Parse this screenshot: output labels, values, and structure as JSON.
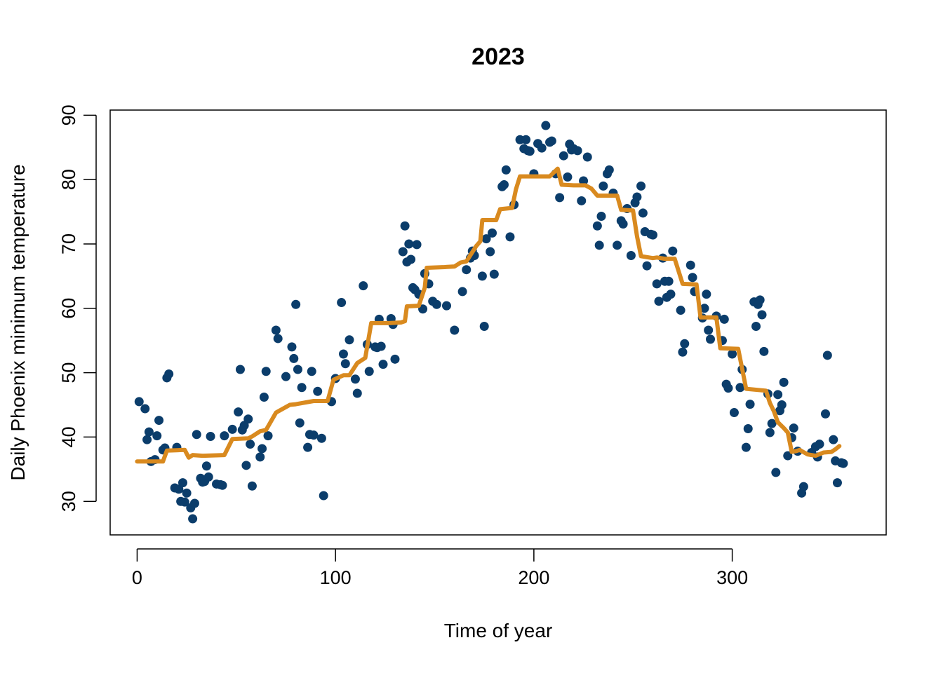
{
  "chart_data": {
    "type": "scatter",
    "title": "2023",
    "xlabel": "Time of year",
    "ylabel": "Daily Phoenix minimum temperature",
    "xlim": [
      -13.6,
      377.6
    ],
    "ylim": [
      24.8,
      90.8
    ],
    "x_ticks": [
      0,
      100,
      200,
      300
    ],
    "y_ticks": [
      30,
      40,
      50,
      60,
      70,
      80,
      90
    ],
    "grid": false,
    "colors": {
      "points": "#0b3d6b",
      "line": "#d98a1f"
    },
    "points": [
      [
        1,
        45.5
      ],
      [
        4,
        44.4
      ],
      [
        5,
        39.6
      ],
      [
        6,
        40.8
      ],
      [
        7,
        36.2
      ],
      [
        9,
        36.5
      ],
      [
        10,
        40.2
      ],
      [
        11,
        42.6
      ],
      [
        13,
        38.0
      ],
      [
        14,
        38.3
      ],
      [
        15,
        49.2
      ],
      [
        16,
        49.8
      ],
      [
        19,
        32.1
      ],
      [
        20,
        38.4
      ],
      [
        21,
        31.9
      ],
      [
        22,
        30.0
      ],
      [
        23,
        32.9
      ],
      [
        24,
        29.9
      ],
      [
        25,
        31.3
      ],
      [
        27,
        29.0
      ],
      [
        28,
        27.3
      ],
      [
        29,
        29.7
      ],
      [
        30,
        40.4
      ],
      [
        32,
        33.6
      ],
      [
        33,
        33.0
      ],
      [
        34,
        33.1
      ],
      [
        35,
        35.5
      ],
      [
        36,
        33.8
      ],
      [
        37,
        40.1
      ],
      [
        40,
        32.7
      ],
      [
        42,
        32.6
      ],
      [
        43,
        32.5
      ],
      [
        44,
        40.2
      ],
      [
        48,
        41.2
      ],
      [
        51,
        43.9
      ],
      [
        52,
        50.5
      ],
      [
        53,
        41.1
      ],
      [
        54,
        41.8
      ],
      [
        55,
        35.6
      ],
      [
        56,
        42.8
      ],
      [
        57,
        38.9
      ],
      [
        58,
        32.4
      ],
      [
        62,
        36.9
      ],
      [
        63,
        38.2
      ],
      [
        64,
        46.2
      ],
      [
        65,
        50.2
      ],
      [
        66,
        40.2
      ],
      [
        70,
        56.6
      ],
      [
        71,
        55.3
      ],
      [
        75,
        49.4
      ],
      [
        78,
        54.0
      ],
      [
        79,
        52.2
      ],
      [
        80,
        60.6
      ],
      [
        81,
        50.5
      ],
      [
        82,
        42.2
      ],
      [
        83,
        47.7
      ],
      [
        86,
        38.4
      ],
      [
        87,
        40.4
      ],
      [
        88,
        50.2
      ],
      [
        89,
        40.3
      ],
      [
        91,
        47.1
      ],
      [
        93,
        39.8
      ],
      [
        94,
        30.9
      ],
      [
        98,
        45.5
      ],
      [
        100,
        49.1
      ],
      [
        103,
        60.9
      ],
      [
        104,
        52.9
      ],
      [
        105,
        51.4
      ],
      [
        107,
        55.1
      ],
      [
        110,
        49.0
      ],
      [
        111,
        46.8
      ],
      [
        114,
        63.5
      ],
      [
        116,
        54.4
      ],
      [
        117,
        50.2
      ],
      [
        120,
        54.0
      ],
      [
        121,
        53.9
      ],
      [
        122,
        58.3
      ],
      [
        123,
        54.1
      ],
      [
        124,
        51.3
      ],
      [
        128,
        58.4
      ],
      [
        129,
        57.5
      ],
      [
        130,
        52.1
      ],
      [
        134,
        68.8
      ],
      [
        135,
        72.8
      ],
      [
        136,
        67.2
      ],
      [
        137,
        70.0
      ],
      [
        138,
        67.6
      ],
      [
        139,
        63.2
      ],
      [
        140,
        62.9
      ],
      [
        141,
        69.9
      ],
      [
        142,
        62.2
      ],
      [
        144,
        59.9
      ],
      [
        145,
        65.4
      ],
      [
        147,
        63.8
      ],
      [
        149,
        61.1
      ],
      [
        151,
        60.6
      ],
      [
        156,
        60.4
      ],
      [
        160,
        56.6
      ],
      [
        164,
        62.6
      ],
      [
        166,
        66.0
      ],
      [
        168,
        67.8
      ],
      [
        169,
        68.9
      ],
      [
        170,
        68.2
      ],
      [
        174,
        65.0
      ],
      [
        175,
        57.2
      ],
      [
        176,
        70.8
      ],
      [
        178,
        68.8
      ],
      [
        179,
        71.7
      ],
      [
        180,
        65.3
      ],
      [
        184,
        78.9
      ],
      [
        185,
        79.2
      ],
      [
        186,
        81.5
      ],
      [
        188,
        71.1
      ],
      [
        190,
        76.1
      ],
      [
        193,
        86.2
      ],
      [
        195,
        84.8
      ],
      [
        196,
        86.2
      ],
      [
        197,
        84.5
      ],
      [
        198,
        84.4
      ],
      [
        200,
        80.9
      ],
      [
        202,
        85.6
      ],
      [
        204,
        84.9
      ],
      [
        206,
        88.4
      ],
      [
        208,
        85.8
      ],
      [
        209,
        86.0
      ],
      [
        211,
        80.9
      ],
      [
        213,
        77.2
      ],
      [
        215,
        83.7
      ],
      [
        217,
        80.4
      ],
      [
        218,
        85.5
      ],
      [
        219,
        84.6
      ],
      [
        220,
        84.8
      ],
      [
        222,
        84.5
      ],
      [
        224,
        76.7
      ],
      [
        225,
        79.8
      ],
      [
        227,
        83.5
      ],
      [
        232,
        72.8
      ],
      [
        233,
        69.8
      ],
      [
        234,
        74.3
      ],
      [
        235,
        79.0
      ],
      [
        237,
        80.9
      ],
      [
        238,
        81.5
      ],
      [
        240,
        77.9
      ],
      [
        242,
        69.8
      ],
      [
        244,
        73.6
      ],
      [
        245,
        73.1
      ],
      [
        247,
        75.5
      ],
      [
        249,
        68.2
      ],
      [
        251,
        76.4
      ],
      [
        252,
        77.3
      ],
      [
        254,
        79.0
      ],
      [
        255,
        74.8
      ],
      [
        256,
        71.9
      ],
      [
        257,
        66.6
      ],
      [
        259,
        71.5
      ],
      [
        260,
        71.4
      ],
      [
        262,
        63.8
      ],
      [
        263,
        61.1
      ],
      [
        265,
        67.8
      ],
      [
        266,
        64.2
      ],
      [
        267,
        61.7
      ],
      [
        268,
        64.2
      ],
      [
        269,
        62.2
      ],
      [
        270,
        68.9
      ],
      [
        274,
        59.7
      ],
      [
        275,
        53.2
      ],
      [
        276,
        54.5
      ],
      [
        279,
        66.7
      ],
      [
        280,
        64.8
      ],
      [
        281,
        62.6
      ],
      [
        285,
        58.5
      ],
      [
        286,
        60.0
      ],
      [
        287,
        62.2
      ],
      [
        288,
        56.6
      ],
      [
        289,
        55.2
      ],
      [
        292,
        58.8
      ],
      [
        295,
        55.0
      ],
      [
        296,
        58.3
      ],
      [
        297,
        48.2
      ],
      [
        298,
        47.6
      ],
      [
        300,
        52.9
      ],
      [
        301,
        43.8
      ],
      [
        304,
        47.7
      ],
      [
        305,
        50.5
      ],
      [
        307,
        38.4
      ],
      [
        308,
        41.3
      ],
      [
        309,
        45.1
      ],
      [
        311,
        61.0
      ],
      [
        312,
        57.2
      ],
      [
        313,
        60.6
      ],
      [
        314,
        61.3
      ],
      [
        315,
        59.0
      ],
      [
        316,
        53.3
      ],
      [
        318,
        46.7
      ],
      [
        319,
        40.7
      ],
      [
        320,
        42.1
      ],
      [
        322,
        34.5
      ],
      [
        323,
        46.6
      ],
      [
        324,
        44.1
      ],
      [
        325,
        45.0
      ],
      [
        326,
        48.5
      ],
      [
        328,
        37.1
      ],
      [
        330,
        39.9
      ],
      [
        331,
        41.4
      ],
      [
        333,
        37.8
      ],
      [
        335,
        31.3
      ],
      [
        336,
        32.3
      ],
      [
        340,
        37.6
      ],
      [
        342,
        38.5
      ],
      [
        343,
        36.9
      ],
      [
        344,
        38.9
      ],
      [
        347,
        43.6
      ],
      [
        348,
        52.7
      ],
      [
        351,
        39.6
      ],
      [
        352,
        36.3
      ],
      [
        353,
        32.9
      ],
      [
        355,
        36.0
      ],
      [
        356,
        35.9
      ]
    ],
    "line": [
      [
        0,
        36.2
      ],
      [
        13,
        36.2
      ],
      [
        15,
        37.9
      ],
      [
        24,
        38.0
      ],
      [
        26,
        36.8
      ],
      [
        28,
        37.2
      ],
      [
        33,
        37.1
      ],
      [
        44,
        37.2
      ],
      [
        48,
        39.7
      ],
      [
        56,
        39.8
      ],
      [
        58,
        40.1
      ],
      [
        62,
        40.9
      ],
      [
        65,
        41.1
      ],
      [
        70,
        43.8
      ],
      [
        77,
        45.0
      ],
      [
        80,
        45.1
      ],
      [
        89,
        45.6
      ],
      [
        96,
        45.6
      ],
      [
        99,
        48.9
      ],
      [
        104,
        49.6
      ],
      [
        107,
        49.6
      ],
      [
        111,
        51.5
      ],
      [
        115,
        52.3
      ],
      [
        118,
        57.7
      ],
      [
        127,
        57.7
      ],
      [
        133,
        57.8
      ],
      [
        135,
        58.0
      ],
      [
        136,
        60.3
      ],
      [
        142,
        60.4
      ],
      [
        145,
        63.2
      ],
      [
        146,
        66.3
      ],
      [
        155,
        66.4
      ],
      [
        160,
        66.5
      ],
      [
        163,
        67.1
      ],
      [
        166,
        67.3
      ],
      [
        171,
        69.7
      ],
      [
        173,
        70.4
      ],
      [
        174,
        73.7
      ],
      [
        181,
        73.7
      ],
      [
        183,
        75.4
      ],
      [
        189,
        75.6
      ],
      [
        191,
        78.5
      ],
      [
        193,
        80.5
      ],
      [
        200,
        80.5
      ],
      [
        208,
        80.5
      ],
      [
        210,
        81.1
      ],
      [
        212,
        81.7
      ],
      [
        214,
        79.2
      ],
      [
        220,
        79.1
      ],
      [
        226,
        79.1
      ],
      [
        229,
        78.6
      ],
      [
        232,
        77.5
      ],
      [
        242,
        77.5
      ],
      [
        244,
        75.3
      ],
      [
        250,
        75.2
      ],
      [
        252,
        71.2
      ],
      [
        254,
        68.1
      ],
      [
        260,
        67.8
      ],
      [
        262,
        67.9
      ],
      [
        266,
        67.7
      ],
      [
        271,
        67.7
      ],
      [
        275,
        63.8
      ],
      [
        282,
        63.7
      ],
      [
        284,
        58.6
      ],
      [
        292,
        58.6
      ],
      [
        294,
        53.8
      ],
      [
        303,
        53.7
      ],
      [
        307,
        47.5
      ],
      [
        317,
        47.2
      ],
      [
        319,
        45.3
      ],
      [
        321,
        44.0
      ],
      [
        323,
        42.3
      ],
      [
        326,
        41.4
      ],
      [
        328,
        40.7
      ],
      [
        330,
        37.7
      ],
      [
        332,
        37.8
      ],
      [
        334,
        38.0
      ],
      [
        338,
        37.3
      ],
      [
        342,
        37.1
      ],
      [
        346,
        37.6
      ],
      [
        350,
        37.7
      ],
      [
        352,
        38.1
      ],
      [
        354,
        38.6
      ]
    ]
  }
}
